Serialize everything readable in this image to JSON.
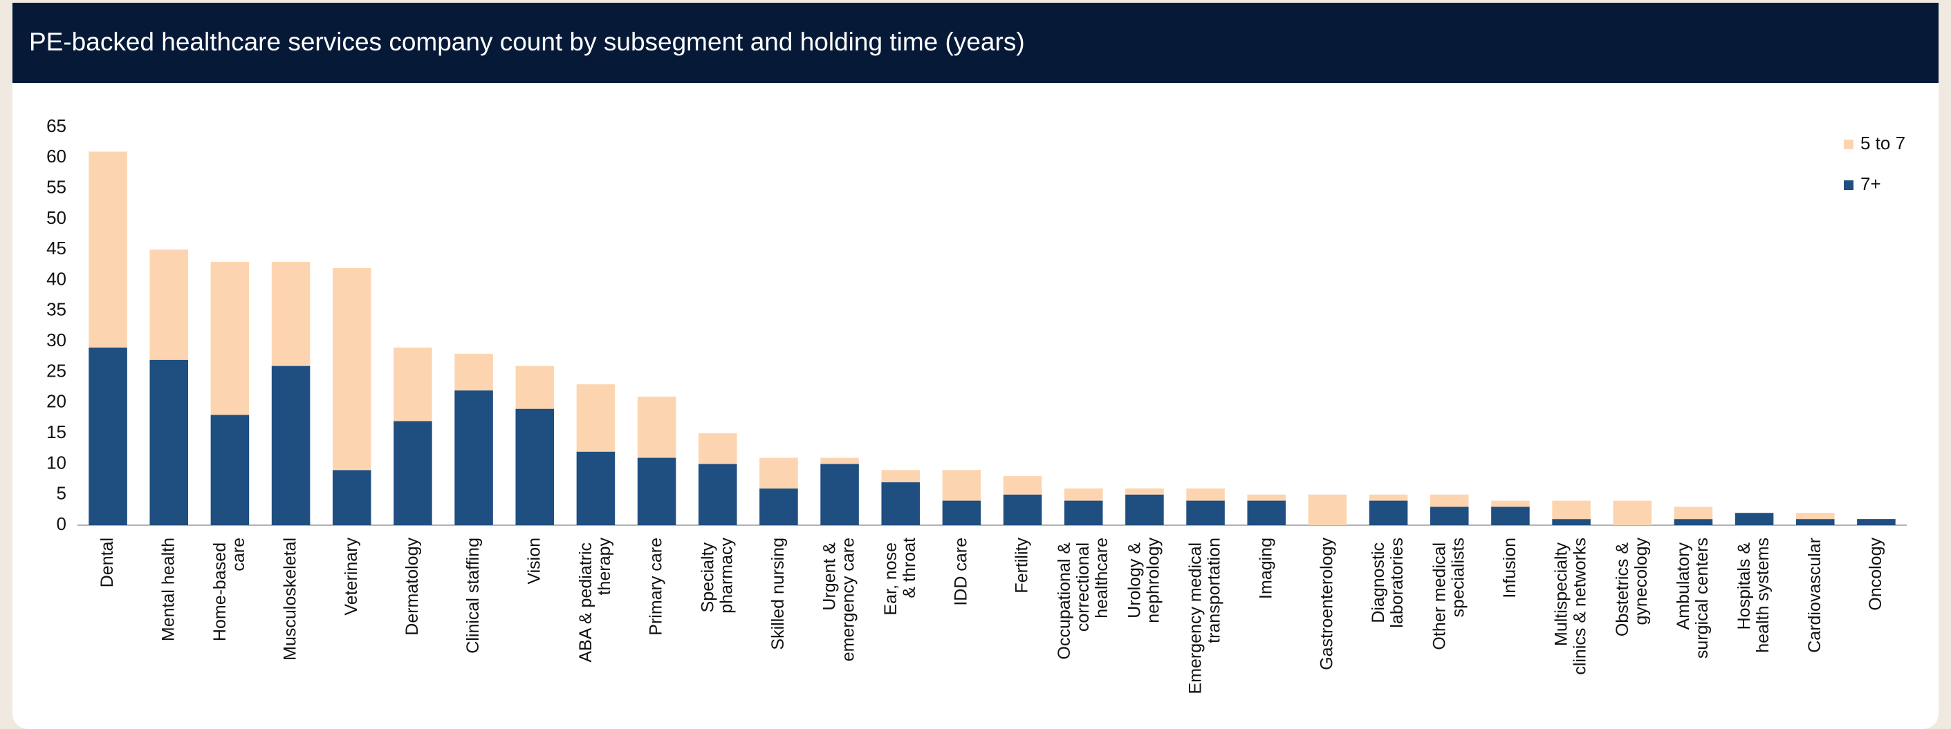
{
  "chart_data": {
    "type": "stacked_bar",
    "title": "PE-backed healthcare services company count by subsegment and holding time (years)",
    "categories": [
      "Dental",
      "Mental health",
      "Home-based care",
      "Musculoskeletal",
      "Veterinary",
      "Dermatology",
      "Clinical staffing",
      "Vision",
      "ABA & pediatric therapy",
      "Primary care",
      "Specialty pharmacy",
      "Skilled nursing",
      "Urgent & emergency care",
      "Ear, nose & throat",
      "IDD care",
      "Fertility",
      "Occupational & correctional healthcare",
      "Urology & nephrology",
      "Emergency medical transportation",
      "Imaging",
      "Gastroenterology",
      "Diagnostic laboratories",
      "Other medical specialists",
      "Infusion",
      "Multispecialty clinics & networks",
      "Obstetrics & gynecology",
      "Ambulatory surgical centers",
      "Hospitals & health systems",
      "Cardiovascular",
      "Oncology"
    ],
    "series": [
      {
        "name": "7+",
        "color": "#1f4e80",
        "values": [
          29,
          27,
          18,
          26,
          9,
          17,
          22,
          19,
          12,
          11,
          10,
          6,
          10,
          7,
          4,
          5,
          4,
          5,
          4,
          4,
          0,
          4,
          3,
          3,
          1,
          0,
          1,
          2,
          1,
          1
        ]
      },
      {
        "name": "5 to 7",
        "color": "#fcd5b0",
        "values": [
          32,
          18,
          25,
          17,
          33,
          12,
          6,
          7,
          11,
          10,
          5,
          5,
          1,
          2,
          5,
          3,
          2,
          1,
          2,
          1,
          5,
          1,
          2,
          1,
          3,
          4,
          2,
          0,
          1,
          0
        ]
      }
    ],
    "ylim": [
      0,
      65
    ],
    "yticks": [
      0,
      5,
      10,
      15,
      20,
      25,
      30,
      35,
      40,
      45,
      50,
      55,
      60,
      65
    ],
    "legend": "top-right"
  }
}
